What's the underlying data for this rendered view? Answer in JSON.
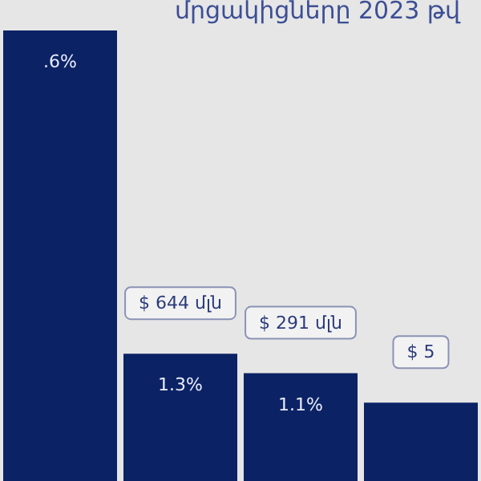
{
  "chart_data": {
    "type": "bar",
    "title": "մրցակիցները 2023 թվ",
    "categories": [
      null,
      null,
      null,
      null
    ],
    "values": [
      4.6,
      1.3,
      1.1,
      0.8
    ],
    "color": "#0b2265",
    "value_labels": [
      null,
      "1.3%",
      "1.1%",
      null
    ],
    "annotations": [
      {
        "text": ".6%",
        "y": 4.6
      },
      "$ 644 մլն",
      "$ 291 մլն",
      "$ 5"
    ]
  }
}
